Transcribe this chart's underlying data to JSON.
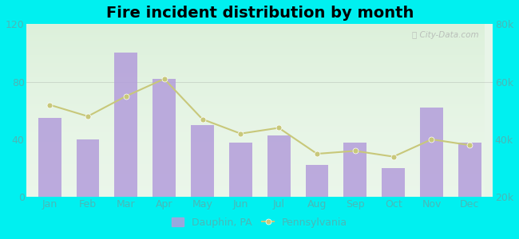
{
  "months": [
    "Jan",
    "Feb",
    "Mar",
    "Apr",
    "May",
    "Jun",
    "Jul",
    "Aug",
    "Sep",
    "Oct",
    "Nov",
    "Dec"
  ],
  "dauphin_values": [
    55,
    40,
    100,
    82,
    50,
    38,
    43,
    22,
    38,
    20,
    62,
    38
  ],
  "pa_values": [
    52000,
    48000,
    55000,
    61000,
    47000,
    42000,
    44000,
    35000,
    36000,
    34000,
    40000,
    38000
  ],
  "bar_color": "#b39ddb",
  "line_color": "#c8c87a",
  "line_marker": "o",
  "title": "Fire incident distribution by month",
  "title_fontsize": 14,
  "left_ylim": [
    0,
    120
  ],
  "right_ylim": [
    20000,
    80000
  ],
  "left_yticks": [
    0,
    40,
    80,
    120
  ],
  "right_yticks": [
    20000,
    40000,
    60000,
    80000
  ],
  "right_ytick_labels": [
    "20k",
    "40k",
    "60k",
    "80k"
  ],
  "figure_bg_color": "#00f0f0",
  "plot_bg_color": "#e8f5e8",
  "tick_label_color": "#4ab8b8",
  "legend_dauphin": "Dauphin, PA",
  "legend_pa": "Pennsylvania",
  "watermark": "ⓘ City-Data.com"
}
